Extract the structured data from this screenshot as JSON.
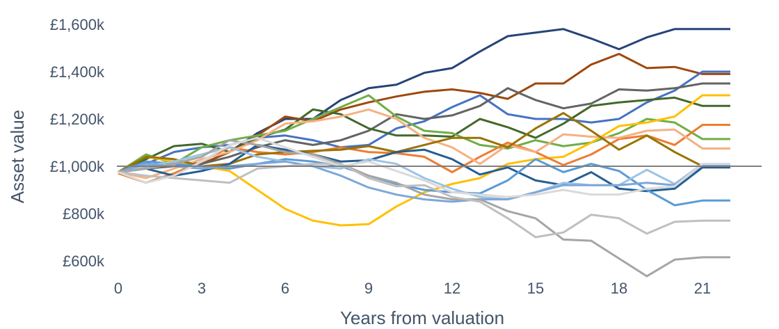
{
  "chart_data": {
    "type": "line",
    "title": "",
    "xlabel": "Years from valuation",
    "ylabel": "Asset value",
    "xlim": [
      0,
      22
    ],
    "ylim": [
      550,
      1650
    ],
    "x_ticks": [
      0,
      3,
      6,
      9,
      12,
      15,
      18,
      21
    ],
    "y_ticks": [
      {
        "value": 600,
        "label": "£600k"
      },
      {
        "value": 800,
        "label": "£800k"
      },
      {
        "value": 1000,
        "label": "£1,000k"
      },
      {
        "value": 1200,
        "label": "£1,200k"
      },
      {
        "value": 1400,
        "label": "£1,400k"
      },
      {
        "value": 1600,
        "label": "£1,600k"
      }
    ],
    "grid": false,
    "reference_line": {
      "y": 1000,
      "color": "#7f7f7f"
    },
    "x": [
      0,
      1,
      2,
      3,
      4,
      5,
      6,
      7,
      8,
      9,
      10,
      11,
      12,
      13,
      14,
      15,
      16,
      17,
      18,
      19,
      20,
      21,
      22
    ],
    "series": [
      {
        "color": "#264478",
        "values": [
          970,
          1000,
          1020,
          1010,
          1060,
          1140,
          1200,
          1200,
          1280,
          1330,
          1345,
          1395,
          1415,
          1485,
          1550,
          1565,
          1580,
          1540,
          1495,
          1545,
          1580,
          1580,
          1580
        ]
      },
      {
        "color": "#9e480e",
        "values": [
          975,
          1020,
          1010,
          1010,
          1060,
          1130,
          1210,
          1190,
          1240,
          1270,
          1295,
          1315,
          1325,
          1310,
          1285,
          1350,
          1350,
          1430,
          1475,
          1415,
          1420,
          1390,
          1390
        ]
      },
      {
        "color": "#4472c4",
        "values": [
          975,
          1010,
          1060,
          1080,
          1090,
          1120,
          1130,
          1110,
          1080,
          1090,
          1160,
          1190,
          1250,
          1300,
          1220,
          1200,
          1200,
          1185,
          1200,
          1270,
          1320,
          1400,
          1400
        ]
      },
      {
        "color": "#636363",
        "values": [
          975,
          990,
          1000,
          1010,
          1040,
          1080,
          1110,
          1090,
          1110,
          1150,
          1220,
          1200,
          1215,
          1255,
          1330,
          1280,
          1245,
          1265,
          1325,
          1320,
          1330,
          1350,
          1350
        ]
      },
      {
        "color": "#43682b",
        "values": [
          975,
          1030,
          1085,
          1095,
          1060,
          1120,
          1155,
          1240,
          1220,
          1160,
          1130,
          1130,
          1125,
          1200,
          1165,
          1120,
          1180,
          1255,
          1270,
          1280,
          1290,
          1255,
          1255
        ]
      },
      {
        "color": "#70ad47",
        "values": [
          975,
          1050,
          1010,
          1080,
          1110,
          1130,
          1150,
          1200,
          1250,
          1300,
          1210,
          1150,
          1140,
          1090,
          1075,
          1110,
          1085,
          1100,
          1140,
          1200,
          1185,
          1115,
          1115
        ]
      },
      {
        "color": "#ffc000",
        "values": [
          975,
          1040,
          1020,
          1000,
          980,
          900,
          820,
          770,
          750,
          755,
          830,
          890,
          925,
          950,
          1010,
          1030,
          1040,
          1100,
          1170,
          1185,
          1210,
          1300,
          1300
        ]
      },
      {
        "color": "#ed7d31",
        "values": [
          970,
          930,
          970,
          1020,
          1080,
          1060,
          1050,
          1060,
          1080,
          1060,
          1055,
          1040,
          975,
          1040,
          1100,
          1060,
          1005,
          1050,
          1115,
          1130,
          1090,
          1175,
          1175
        ]
      },
      {
        "color": "#f4b183",
        "values": [
          975,
          950,
          990,
          1030,
          1060,
          1110,
          1180,
          1190,
          1210,
          1240,
          1200,
          1120,
          1080,
          1010,
          1090,
          1060,
          1135,
          1125,
          1120,
          1150,
          1155,
          1075,
          1075
        ]
      },
      {
        "color": "#997300",
        "values": [
          975,
          1040,
          1030,
          1000,
          1010,
          1050,
          1060,
          1065,
          1070,
          1085,
          1060,
          1090,
          1120,
          1120,
          1080,
          1160,
          1225,
          1150,
          1070,
          1130,
          1060,
          1000,
          1000
        ]
      },
      {
        "color": "#255e91",
        "values": [
          975,
          990,
          960,
          980,
          1010,
          1090,
          1070,
          1050,
          1020,
          1025,
          1060,
          1070,
          1030,
          965,
          995,
          940,
          920,
          975,
          905,
          895,
          905,
          995,
          995
        ]
      },
      {
        "color": "#5b9bd5",
        "values": [
          975,
          1020,
          1010,
          1000,
          990,
          1010,
          1030,
          1020,
          1000,
          960,
          925,
          900,
          890,
          885,
          940,
          1030,
          975,
          1010,
          980,
          900,
          835,
          855,
          855
        ]
      },
      {
        "color": "#9dc3e6",
        "values": [
          975,
          1000,
          1020,
          1050,
          1080,
          1040,
          1020,
          1000,
          990,
          1030,
          1010,
          950,
          905,
          870,
          860,
          890,
          930,
          920,
          920,
          985,
          925,
          1010,
          1010
        ]
      },
      {
        "color": "#7da7d9",
        "values": [
          975,
          1010,
          1000,
          990,
          1000,
          1010,
          1020,
          1000,
          960,
          910,
          880,
          860,
          850,
          860,
          860,
          890,
          920,
          920,
          920,
          930,
          920,
          1005,
          1005
        ]
      },
      {
        "color": "#a5a5a5",
        "values": [
          975,
          990,
          1010,
          1040,
          1110,
          1090,
          1060,
          1050,
          1010,
          960,
          930,
          880,
          860,
          860,
          810,
          780,
          690,
          685,
          610,
          535,
          605,
          615,
          615
        ]
      },
      {
        "color": "#bfbfbf",
        "values": [
          975,
          960,
          950,
          940,
          930,
          990,
          1000,
          1010,
          1010,
          950,
          915,
          920,
          870,
          850,
          780,
          700,
          720,
          795,
          780,
          715,
          765,
          770,
          770
        ]
      },
      {
        "color": "#d9d9d9",
        "values": [
          975,
          930,
          960,
          1020,
          1090,
          1120,
          1080,
          1040,
          1000,
          1020,
          980,
          940,
          890,
          880,
          870,
          880,
          900,
          880,
          880,
          905,
          915,
          1010,
          1010
        ]
      }
    ]
  }
}
